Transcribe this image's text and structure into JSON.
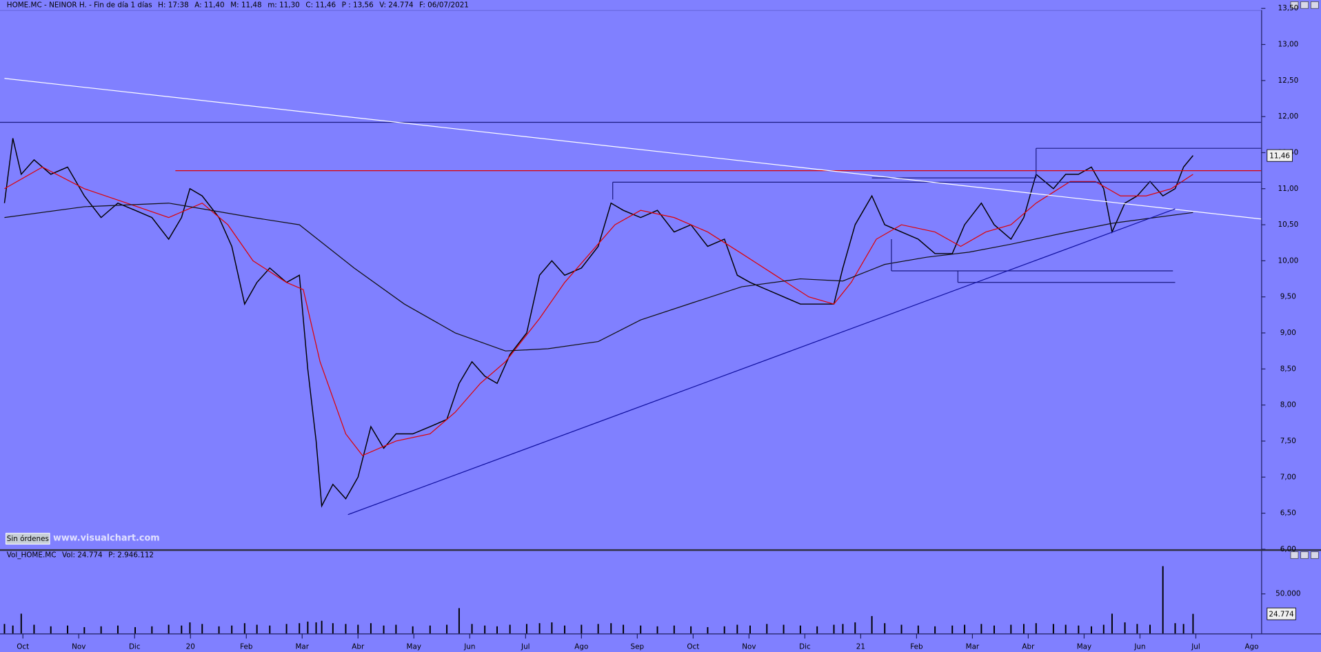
{
  "chart_data": [
    {
      "type": "line",
      "title_items": [
        {
          "text": "HOME.MC - NEINOR H. - Fin de día 1 días",
          "color": "#000000"
        },
        {
          "text": "H: 17:38",
          "color": "#000000"
        },
        {
          "text": "A: 11,40",
          "color": "#000000"
        },
        {
          "text": "M: 11,48",
          "color": "#000000"
        },
        {
          "text": "m: 11,30",
          "color": "#000000"
        },
        {
          "text": "C: 11,46",
          "color": "#000000"
        },
        {
          "text": "P : 13,56",
          "color": "#e00000"
        },
        {
          "text": "V: 24.774",
          "color": "#000000"
        },
        {
          "text": "F: 06/07/2021",
          "color": "#000000"
        }
      ],
      "xlim": [
        -0.41,
        22.17
      ],
      "ylim": [
        6,
        13.5
      ],
      "yticks": [
        {
          "value": 6,
          "label": "6,00"
        },
        {
          "value": 6.5,
          "label": "6,50"
        },
        {
          "value": 7,
          "label": "7,00"
        },
        {
          "value": 7.5,
          "label": "7,50"
        },
        {
          "value": 8,
          "label": "8,00"
        },
        {
          "value": 8.5,
          "label": "8,50"
        },
        {
          "value": 9,
          "label": "9,00"
        },
        {
          "value": 9.5,
          "label": "9,50"
        },
        {
          "value": 10,
          "label": "10,00"
        },
        {
          "value": 10.5,
          "label": "10,50"
        },
        {
          "value": 11,
          "label": "11,00"
        },
        {
          "value": 11.5,
          "label": "11,50"
        },
        {
          "value": 12,
          "label": "12,00"
        },
        {
          "value": 12.5,
          "label": "12,50"
        },
        {
          "value": 13,
          "label": "13,00"
        },
        {
          "value": 13.5,
          "label": "13,50"
        }
      ],
      "series": [
        {
          "color": "#000000",
          "x": [
            -0.33,
            -0.18,
            -0.03,
            0.2,
            0.5,
            0.8,
            1.1,
            1.4,
            1.7,
            2.01,
            2.31,
            2.61,
            2.84,
            2.99,
            3.21,
            3.51,
            3.74,
            3.97,
            4.19,
            4.42,
            4.72,
            4.95,
            5.1,
            5.25,
            5.35,
            5.55,
            5.78,
            6.0,
            6.23,
            6.46,
            6.68,
            6.98,
            7.29,
            7.59,
            7.81,
            8.04,
            8.27,
            8.49,
            8.72,
            9.02,
            9.25,
            9.47,
            9.7,
            10.0,
            10.3,
            10.53,
            10.75,
            11.06,
            11.36,
            11.66,
            11.96,
            12.26,
            12.56,
            12.79,
            13.02,
            13.32,
            13.62,
            13.92,
            14.22,
            14.52,
            14.68,
            14.9,
            15.2,
            15.43,
            15.73,
            16.03,
            16.33,
            16.64,
            16.86,
            17.16,
            17.39,
            17.69,
            17.92,
            18.14,
            18.45,
            18.67,
            18.9,
            19.13,
            19.35,
            19.5,
            19.73,
            19.95,
            20.18,
            20.41,
            20.63,
            20.78,
            20.95
          ],
          "values": [
            10.8,
            11.7,
            11.2,
            11.4,
            11.2,
            11.3,
            10.9,
            10.6,
            10.8,
            10.7,
            10.6,
            10.3,
            10.6,
            11.0,
            10.9,
            10.6,
            10.2,
            9.4,
            9.7,
            9.9,
            9.7,
            9.8,
            8.5,
            7.5,
            6.6,
            6.9,
            6.7,
            7.0,
            7.7,
            7.4,
            7.6,
            7.6,
            7.7,
            7.8,
            8.3,
            8.6,
            8.4,
            8.3,
            8.7,
            9.0,
            9.8,
            10.0,
            9.8,
            9.9,
            10.2,
            10.8,
            10.7,
            10.6,
            10.7,
            10.4,
            10.5,
            10.2,
            10.3,
            9.8,
            9.7,
            9.6,
            9.5,
            9.4,
            9.4,
            9.4,
            9.9,
            10.5,
            10.9,
            10.5,
            10.4,
            10.3,
            10.1,
            10.1,
            10.5,
            10.8,
            10.5,
            10.3,
            10.6,
            11.2,
            11.0,
            11.2,
            11.2,
            11.3,
            11.0,
            10.4,
            10.8,
            10.9,
            11.1,
            10.9,
            11.0,
            11.3,
            11.46
          ]
        },
        {
          "color": "#e00000",
          "x": [
            -0.33,
            0.35,
            1.1,
            1.86,
            2.61,
            3.21,
            3.67,
            4.12,
            4.72,
            5.02,
            5.32,
            5.78,
            6.08,
            6.68,
            7.29,
            7.74,
            8.19,
            8.64,
            9.25,
            9.7,
            10.15,
            10.6,
            11.06,
            11.66,
            12.26,
            12.87,
            13.47,
            14.07,
            14.52,
            14.83,
            15.28,
            15.73,
            16.33,
            16.79,
            17.24,
            17.69,
            18.14,
            18.75,
            19.2,
            19.65,
            20.11,
            20.56,
            20.95
          ],
          "values": [
            11.0,
            11.3,
            11.0,
            10.8,
            10.6,
            10.8,
            10.5,
            10.0,
            9.7,
            9.6,
            8.6,
            7.6,
            7.3,
            7.5,
            7.6,
            7.9,
            8.3,
            8.6,
            9.2,
            9.7,
            10.1,
            10.5,
            10.7,
            10.6,
            10.4,
            10.1,
            9.8,
            9.5,
            9.4,
            9.7,
            10.3,
            10.5,
            10.4,
            10.2,
            10.4,
            10.5,
            10.8,
            11.1,
            11.1,
            10.9,
            10.9,
            11.0,
            11.2
          ]
        },
        {
          "color": "#101010",
          "x": [
            -0.33,
            1.1,
            2.61,
            4.12,
            4.95,
            5.93,
            6.83,
            7.74,
            8.64,
            9.4,
            10.3,
            11.06,
            11.96,
            12.87,
            13.92,
            14.68,
            15.43,
            16.18,
            16.94,
            17.69,
            18.6,
            19.5,
            20.95
          ],
          "values": [
            10.6,
            10.75,
            10.8,
            10.6,
            10.5,
            9.9,
            9.4,
            9.0,
            8.75,
            8.78,
            8.88,
            9.18,
            9.41,
            9.64,
            9.75,
            9.72,
            9.95,
            10.05,
            10.12,
            10.23,
            10.38,
            10.52,
            10.67
          ]
        }
      ],
      "last_price": {
        "value": 11.46,
        "label": "11,46"
      },
      "lines": [
        {
          "color": "#1a1a80",
          "x": [
            -0.41,
            22.17
          ],
          "y": [
            11.92,
            11.92
          ]
        },
        {
          "color": "#e00000",
          "x": [
            2.73,
            22.17
          ],
          "y": [
            11.25,
            11.25
          ]
        },
        {
          "color": "#1a1a80",
          "x": [
            18.14,
            22.17
          ],
          "y": [
            11.56,
            11.56
          ]
        },
        {
          "color": "#1a1a80",
          "x": [
            10.56,
            22.17
          ],
          "y": [
            11.09,
            11.09
          ]
        },
        {
          "color": "#1a1a80",
          "x": [
            15.2,
            18.14
          ],
          "y": [
            11.15,
            11.15
          ]
        },
        {
          "color": "#1a1a80",
          "x": [
            10.56,
            10.56
          ],
          "y": [
            11.09,
            10.85
          ]
        },
        {
          "color": "#1a1a80",
          "x": [
            18.14,
            18.14
          ],
          "y": [
            11.56,
            11.15
          ]
        },
        {
          "color": "#1a1a80",
          "x": [
            15.55,
            15.55
          ],
          "y": [
            9.86,
            10.3
          ]
        },
        {
          "color": "#1a1a80",
          "x": [
            16.74,
            16.74
          ],
          "y": [
            9.86,
            9.7
          ]
        },
        {
          "color": "#1a1a80",
          "x": [
            15.55,
            20.59
          ],
          "y": [
            9.86,
            9.86
          ]
        },
        {
          "color": "#1a1a80",
          "x": [
            16.74,
            20.63
          ],
          "y": [
            9.7,
            9.7
          ]
        },
        {
          "color": "#ffffff",
          "x": [
            -0.33,
            22.17
          ],
          "y": [
            12.53,
            10.58
          ]
        },
        {
          "color": "#1010a0",
          "x": [
            5.82,
            20.63
          ],
          "y": [
            6.48,
            10.72
          ]
        }
      ]
    },
    {
      "type": "bar",
      "title_items": [
        {
          "text": "Vol_HOME.MC",
          "color": "#000000"
        },
        {
          "text": "Vol: 24.774",
          "color": "#000000"
        },
        {
          "text": "P: 2.946.112",
          "color": "#e00000"
        }
      ],
      "color": "#000000",
      "xlim": [
        -0.41,
        22.17
      ],
      "ylim": [
        0,
        100000
      ],
      "yticks": [
        {
          "value": 50000,
          "label": "50.000"
        }
      ],
      "xticks": [
        {
          "value": 0,
          "label": "Oct"
        },
        {
          "value": 1,
          "label": "Nov"
        },
        {
          "value": 2,
          "label": "Dic"
        },
        {
          "value": 3,
          "label": "20"
        },
        {
          "value": 4,
          "label": "Feb"
        },
        {
          "value": 5,
          "label": "Mar"
        },
        {
          "value": 6,
          "label": "Abr"
        },
        {
          "value": 7,
          "label": "May"
        },
        {
          "value": 8,
          "label": "Jun"
        },
        {
          "value": 9,
          "label": "Jul"
        },
        {
          "value": 10,
          "label": "Ago"
        },
        {
          "value": 11,
          "label": "Sep"
        },
        {
          "value": 12,
          "label": "Oct"
        },
        {
          "value": 13,
          "label": "Nov"
        },
        {
          "value": 14,
          "label": "Dic"
        },
        {
          "value": 15,
          "label": "21"
        },
        {
          "value": 16,
          "label": "Feb"
        },
        {
          "value": 17,
          "label": "Mar"
        },
        {
          "value": 18,
          "label": "Abr"
        },
        {
          "value": 19,
          "label": "May"
        },
        {
          "value": 20,
          "label": "Jun"
        },
        {
          "value": 21,
          "label": "Jul"
        },
        {
          "value": 22,
          "label": "Ago"
        }
      ],
      "x": [
        -0.33,
        -0.18,
        -0.03,
        0.2,
        0.5,
        0.8,
        1.1,
        1.4,
        1.7,
        2.01,
        2.31,
        2.61,
        2.84,
        2.99,
        3.21,
        3.51,
        3.74,
        3.97,
        4.19,
        4.42,
        4.72,
        4.95,
        5.1,
        5.25,
        5.35,
        5.55,
        5.78,
        6.0,
        6.23,
        6.46,
        6.68,
        6.98,
        7.29,
        7.59,
        7.81,
        8.04,
        8.27,
        8.49,
        8.72,
        9.02,
        9.25,
        9.47,
        9.7,
        10.0,
        10.3,
        10.53,
        10.75,
        11.06,
        11.36,
        11.66,
        11.96,
        12.26,
        12.56,
        12.79,
        13.02,
        13.32,
        13.62,
        13.92,
        14.22,
        14.52,
        14.68,
        14.9,
        15.2,
        15.43,
        15.73,
        16.03,
        16.33,
        16.64,
        16.86,
        17.16,
        17.39,
        17.69,
        17.92,
        18.14,
        18.45,
        18.67,
        18.9,
        19.13,
        19.35,
        19.5,
        19.73,
        19.95,
        20.18,
        20.41,
        20.63,
        20.78,
        20.95
      ],
      "values": [
        12000,
        10000,
        25000,
        11000,
        9000,
        10000,
        8000,
        9000,
        10000,
        8000,
        9000,
        11000,
        10000,
        14000,
        12000,
        9000,
        10000,
        13000,
        11000,
        10000,
        12000,
        13000,
        15000,
        14000,
        16000,
        13000,
        12000,
        11000,
        13000,
        10000,
        11000,
        9000,
        10000,
        11000,
        32000,
        12000,
        10000,
        9000,
        11000,
        12000,
        13000,
        14000,
        10000,
        11000,
        12000,
        13000,
        11000,
        10000,
        9000,
        10000,
        9000,
        8000,
        9000,
        11000,
        10000,
        12000,
        11000,
        10000,
        9000,
        11000,
        12000,
        14000,
        22000,
        13000,
        11000,
        10000,
        9000,
        10000,
        11000,
        12000,
        10000,
        11000,
        12000,
        13000,
        12000,
        11000,
        10000,
        9000,
        11000,
        25000,
        14000,
        12000,
        11000,
        85000,
        13000,
        12000,
        24774
      ],
      "last_volume": {
        "value": 24774,
        "label": "24.774"
      }
    }
  ],
  "ui": {
    "orders_button": "Sin órdenes",
    "watermark": "www.visualchart.com"
  }
}
